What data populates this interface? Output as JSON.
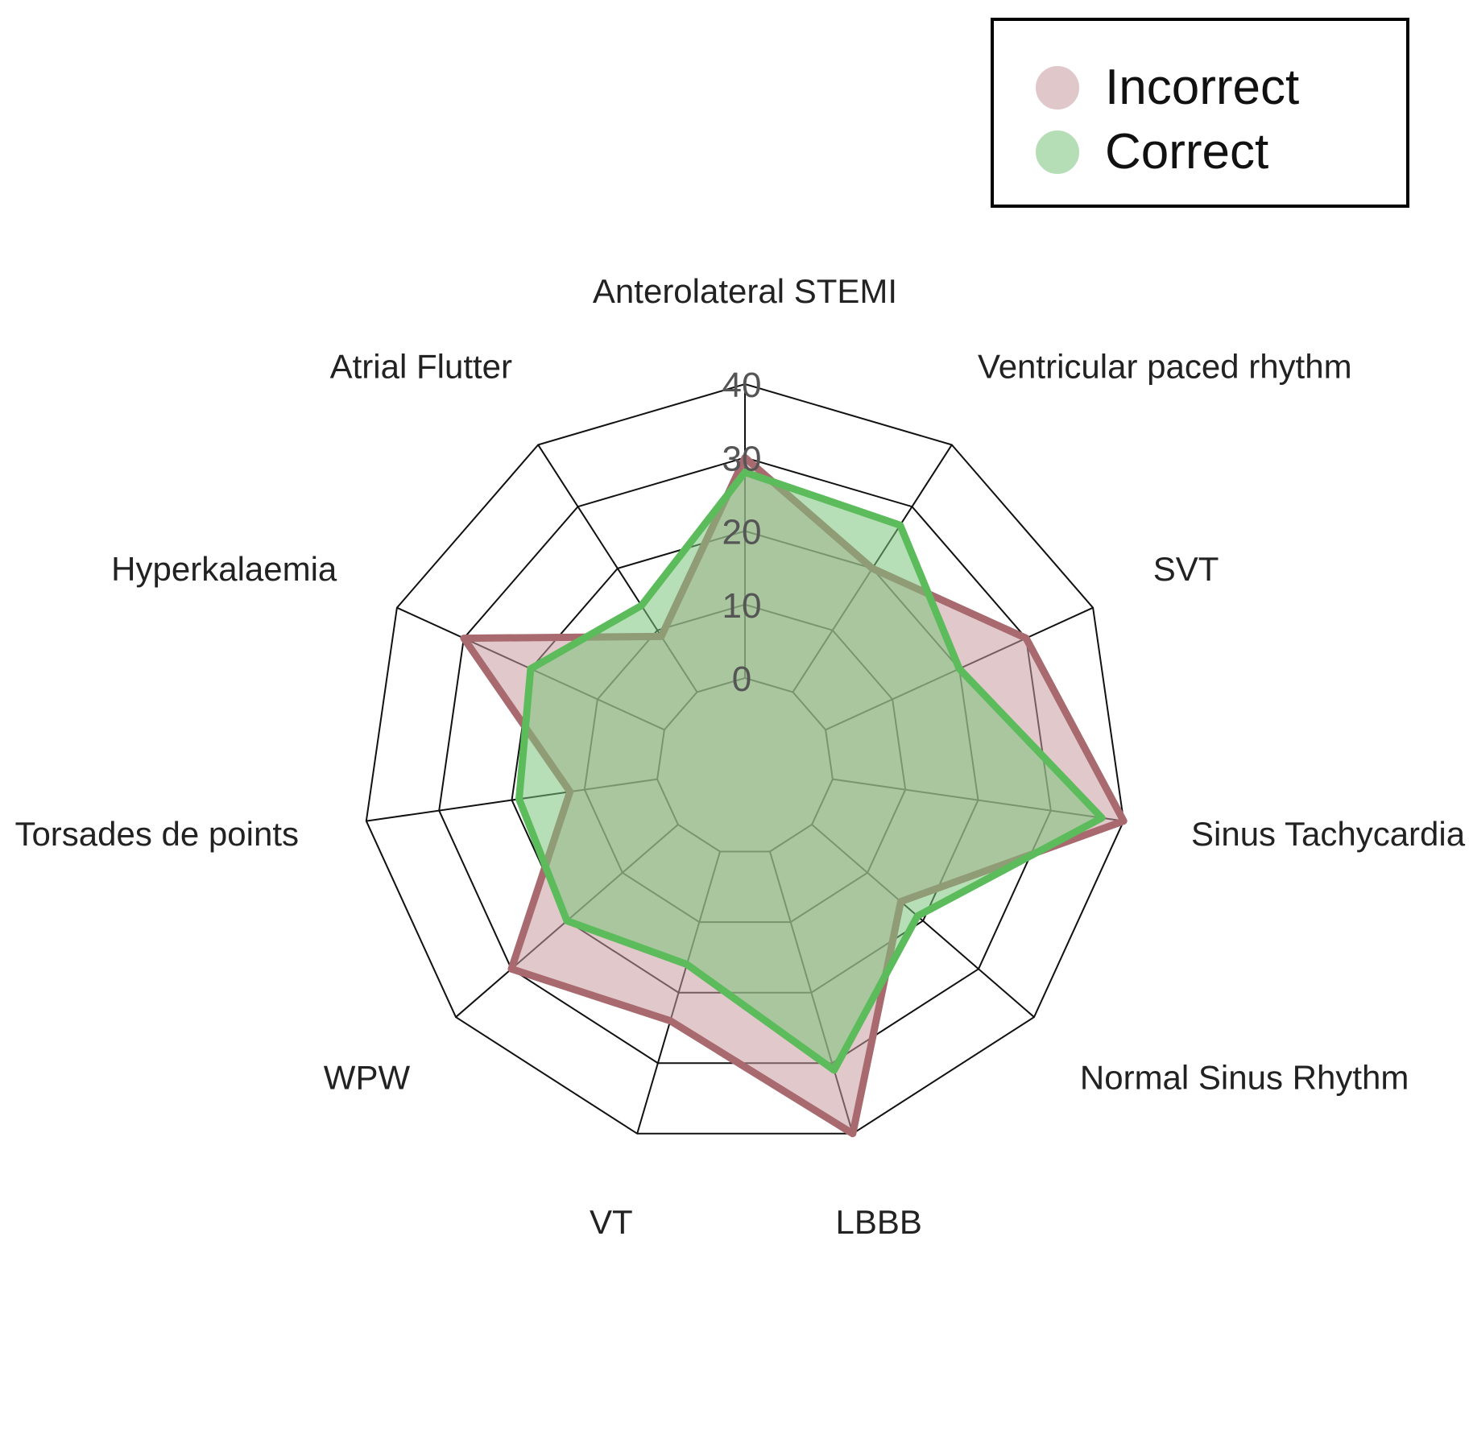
{
  "chart_data": {
    "type": "radar",
    "axes": [
      "Anterolateral STEMI",
      "Ventricular paced rhythm",
      "SVT",
      "Sinus Tachycardia",
      "Normal Sinus Rhythm",
      "LBBB",
      "VT",
      "WPW",
      "Torsades de points",
      "Hyperkalaemia",
      "Atrial Flutter"
    ],
    "range": [
      0,
      40
    ],
    "ticks": [
      "0",
      "10",
      "20",
      "30",
      "40"
    ],
    "series": [
      {
        "name": "Incorrect",
        "values": [
          30,
          20,
          30,
          40,
          16,
          40,
          24,
          30,
          12,
          30,
          9
        ],
        "color": "#a86a6e",
        "fill": "#c89aa0"
      },
      {
        "name": "Correct",
        "values": [
          28,
          27,
          20,
          37,
          19,
          31,
          16,
          20,
          19,
          20,
          14
        ],
        "color": "#5cbc5c",
        "fill": "#7cc47c"
      }
    ],
    "legend_position": "top-right",
    "grid": true
  }
}
